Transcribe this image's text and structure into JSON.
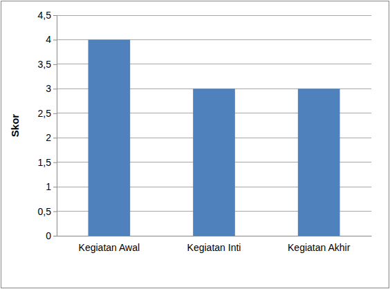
{
  "chart_data": {
    "type": "bar",
    "y_label": "Skor",
    "categories": [
      "Kegiatan Awal",
      "Kegiatan Inti",
      "Kegiatan Akhir"
    ],
    "values": [
      4,
      3,
      3
    ],
    "color": "#4f81bd",
    "ylim": [
      0,
      4.5
    ],
    "yticks": [
      0,
      {
        "value": 0.5,
        "label": "0,5"
      },
      1,
      {
        "value": 1.5,
        "label": "1,5"
      },
      2,
      {
        "value": 2.5,
        "label": "2,5"
      },
      3,
      {
        "value": 3.5,
        "label": "3,5"
      },
      4,
      {
        "value": 4.5,
        "label": "4,5"
      }
    ],
    "grid": true
  }
}
